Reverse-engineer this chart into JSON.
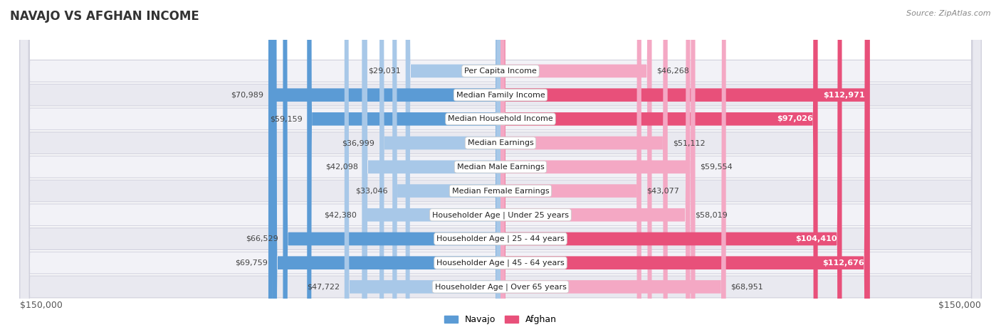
{
  "title": "NAVAJO VS AFGHAN INCOME",
  "source": "Source: ZipAtlas.com",
  "categories": [
    "Per Capita Income",
    "Median Family Income",
    "Median Household Income",
    "Median Earnings",
    "Median Male Earnings",
    "Median Female Earnings",
    "Householder Age | Under 25 years",
    "Householder Age | 25 - 44 years",
    "Householder Age | 45 - 64 years",
    "Householder Age | Over 65 years"
  ],
  "navajo_values": [
    29031,
    70989,
    59159,
    36999,
    42098,
    33046,
    42380,
    66529,
    69759,
    47722
  ],
  "afghan_values": [
    46268,
    112971,
    97026,
    51112,
    59554,
    43077,
    58019,
    104410,
    112676,
    68951
  ],
  "navajo_labels": [
    "$29,031",
    "$70,989",
    "$59,159",
    "$36,999",
    "$42,098",
    "$33,046",
    "$42,380",
    "$66,529",
    "$69,759",
    "$47,722"
  ],
  "afghan_labels": [
    "$46,268",
    "$112,971",
    "$97,026",
    "$51,112",
    "$59,554",
    "$43,077",
    "$58,019",
    "$104,410",
    "$112,676",
    "$68,951"
  ],
  "navajo_color_light": "#a8c8e8",
  "navajo_color_dark": "#5b9bd5",
  "afghan_color_light": "#f4a8c4",
  "afghan_color_dark": "#e8507a",
  "navajo_dark_threshold": 55000,
  "afghan_dark_threshold": 85000,
  "max_value": 150000,
  "x_label_left": "$150,000",
  "x_label_right": "$150,000",
  "navajo_legend": "Navajo",
  "afghan_legend": "Afghan",
  "background_color": "#ffffff",
  "row_bg_even": "#f0f0f5",
  "row_bg_odd": "#e8e8f0",
  "title_fontsize": 12,
  "source_fontsize": 8,
  "label_fontsize": 8,
  "category_fontsize": 8,
  "axis_label_fontsize": 9
}
